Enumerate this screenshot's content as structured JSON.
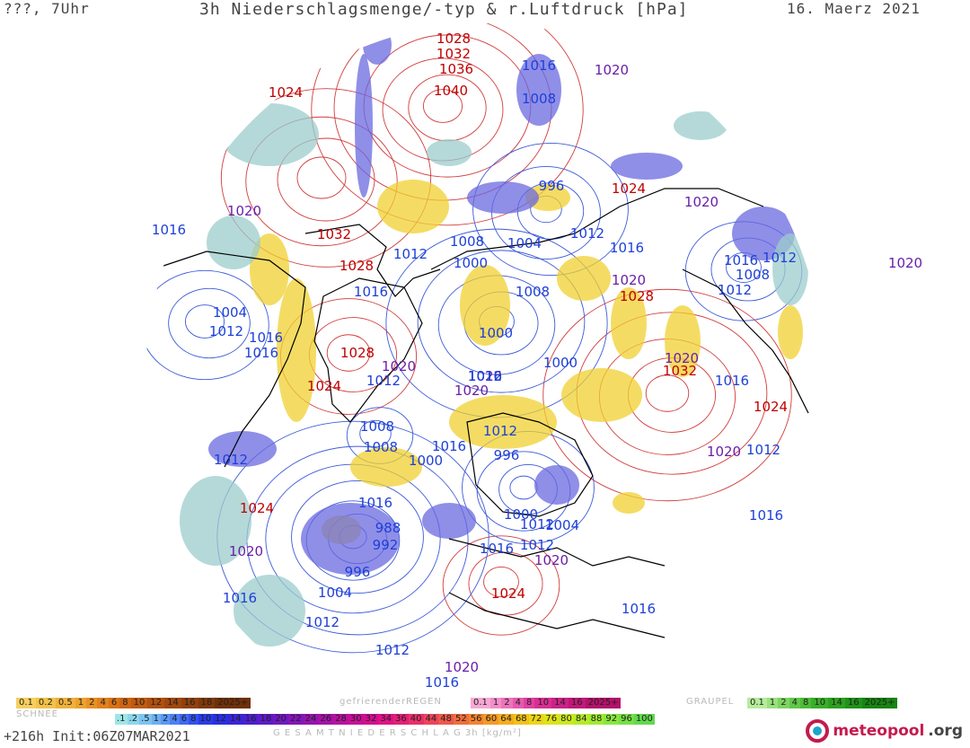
{
  "header": {
    "left": "???, 7Uhr",
    "title": "3h Niederschlagsmenge/-typ & r.Luftdruck [hPa]",
    "date": "16. Maerz 2021"
  },
  "footer": {
    "run": "+216h  Init:06Z07MAR2021",
    "total_label": "G E S A M T N I E D E R S C H L A G   3h   [kg/m²]",
    "logo_text": "meteopool",
    "logo_tld": ".org"
  },
  "legends": {
    "snow": {
      "title": "SCHNEE",
      "values": [
        "0.1",
        "0.2",
        "0.5",
        "1",
        "2",
        "4",
        "6",
        "8",
        "10",
        "12",
        "14",
        "16",
        "18",
        "2025+"
      ],
      "colors": [
        "#f5d060",
        "#f3c24a",
        "#efb23a",
        "#eca22e",
        "#e79225",
        "#e0811c",
        "#d87216",
        "#cc6512",
        "#bf5a10",
        "#b0500e",
        "#a0470c",
        "#90400a",
        "#7f3808",
        "#6f3006"
      ]
    },
    "freezing_rain": {
      "title": "gefrierenderREGEN",
      "values": [
        "0.1",
        "1",
        "2",
        "4",
        "8",
        "10",
        "14",
        "16",
        "2025+"
      ],
      "colors": [
        "#f7a8d4",
        "#f28ec8",
        "#ec74bb",
        "#e65aae",
        "#e040a0",
        "#d82e93",
        "#cc2286",
        "#c01879",
        "#b4106c"
      ]
    },
    "graupel": {
      "title": "GRAUPEL",
      "values": [
        "0.1",
        "1",
        "2",
        "4",
        "8",
        "10",
        "14",
        "16",
        "2025+"
      ],
      "colors": [
        "#b6ec9c",
        "#9ae07e",
        "#7ed462",
        "#62c84a",
        "#4cbc38",
        "#3aae2a",
        "#2ca020",
        "#209218",
        "#168412"
      ]
    },
    "total": {
      "values": [
        ".1",
        ".2",
        ".5",
        "1",
        "2",
        "4",
        "6",
        "8",
        "10",
        "12",
        "14",
        "16",
        "18",
        "20",
        "22",
        "24",
        "26",
        "28",
        "30",
        "32",
        "34",
        "36",
        "40",
        "44",
        "48",
        "52",
        "56",
        "60",
        "64",
        "68",
        "72",
        "76",
        "80",
        "84",
        "88",
        "92",
        "96",
        "100"
      ],
      "colors": [
        "#9ee6e6",
        "#8cd6ec",
        "#7cc4f0",
        "#6cb0f2",
        "#5c98f4",
        "#4c80f4",
        "#3e68f2",
        "#3250ee",
        "#283ce8",
        "#2a2ee0",
        "#3a24d8",
        "#4c1ed0",
        "#5e1ac8",
        "#7018c0",
        "#8216b8",
        "#9414b0",
        "#a612a8",
        "#b810a0",
        "#c80e98",
        "#d40e8e",
        "#de1484",
        "#e41e78",
        "#e8306a",
        "#ec445a",
        "#ee584a",
        "#f06e3c",
        "#f28430",
        "#f49a26",
        "#f4ae1e",
        "#f2c21a",
        "#ecd418",
        "#e0e21a",
        "#cce820",
        "#b6ea28",
        "#a0ea32",
        "#8ae63c",
        "#76e046",
        "#62d850"
      ]
    }
  },
  "map": {
    "colors": {
      "high_label": "#c00000",
      "low_label": "#1e40d8",
      "mid_label": "#6a1fa8",
      "high_isobar": "#d23c3c",
      "low_isobar": "#3c5ad8",
      "coast": "#000000",
      "snow": "#f0d030",
      "rain": "#6a6ae0",
      "drizzle": "#9ccccc"
    },
    "pressure_labels": [
      {
        "text": "1028",
        "kind": "high"
      },
      {
        "text": "1032",
        "kind": "high"
      },
      {
        "text": "1036",
        "kind": "high"
      },
      {
        "text": "1040",
        "kind": "high"
      },
      {
        "text": "1024",
        "kind": "high"
      },
      {
        "text": "1016",
        "kind": "low"
      },
      {
        "text": "1020",
        "kind": "mid"
      },
      {
        "text": "1008",
        "kind": "low"
      },
      {
        "text": "1020",
        "kind": "mid"
      },
      {
        "text": "996",
        "kind": "low"
      },
      {
        "text": "1024",
        "kind": "high"
      },
      {
        "text": "1016",
        "kind": "low"
      },
      {
        "text": "1020",
        "kind": "mid"
      },
      {
        "text": "1016",
        "kind": "low"
      },
      {
        "text": "1020",
        "kind": "mid"
      },
      {
        "text": "1032",
        "kind": "high"
      },
      {
        "text": "1008",
        "kind": "low"
      },
      {
        "text": "1004",
        "kind": "low"
      },
      {
        "text": "1012",
        "kind": "low"
      },
      {
        "text": "1016",
        "kind": "low"
      },
      {
        "text": "1008",
        "kind": "low"
      },
      {
        "text": "1012",
        "kind": "low"
      },
      {
        "text": "1028",
        "kind": "high"
      },
      {
        "text": "1012",
        "kind": "low"
      },
      {
        "text": "1000",
        "kind": "low"
      },
      {
        "text": "1020",
        "kind": "mid"
      },
      {
        "text": "1016",
        "kind": "low"
      },
      {
        "text": "1008",
        "kind": "low"
      },
      {
        "text": "1012",
        "kind": "low"
      },
      {
        "text": "1028",
        "kind": "high"
      },
      {
        "text": "1004",
        "kind": "low"
      },
      {
        "text": "1012",
        "kind": "low"
      },
      {
        "text": "1016",
        "kind": "low"
      },
      {
        "text": "1016",
        "kind": "low"
      },
      {
        "text": "1000",
        "kind": "low"
      },
      {
        "text": "1020",
        "kind": "mid"
      },
      {
        "text": "1012",
        "kind": "low"
      },
      {
        "text": "1028",
        "kind": "high"
      },
      {
        "text": "1024",
        "kind": "high"
      },
      {
        "text": "1000",
        "kind": "low"
      },
      {
        "text": "1020",
        "kind": "mid"
      },
      {
        "text": "1032",
        "kind": "high"
      },
      {
        "text": "1016",
        "kind": "low"
      },
      {
        "text": "1012",
        "kind": "low"
      },
      {
        "text": "1020",
        "kind": "mid"
      },
      {
        "text": "1008",
        "kind": "low"
      },
      {
        "text": "1016",
        "kind": "low"
      },
      {
        "text": "1024",
        "kind": "high"
      },
      {
        "text": "1008",
        "kind": "low"
      },
      {
        "text": "1016",
        "kind": "low"
      },
      {
        "text": "1012",
        "kind": "low"
      },
      {
        "text": "1000",
        "kind": "low"
      },
      {
        "text": "996",
        "kind": "low"
      },
      {
        "text": "1020",
        "kind": "mid"
      },
      {
        "text": "1012",
        "kind": "low"
      },
      {
        "text": "1012",
        "kind": "low"
      },
      {
        "text": "1024",
        "kind": "high"
      },
      {
        "text": "988",
        "kind": "low"
      },
      {
        "text": "992",
        "kind": "low"
      },
      {
        "text": "1000",
        "kind": "low"
      },
      {
        "text": "1004",
        "kind": "low"
      },
      {
        "text": "1016",
        "kind": "low"
      },
      {
        "text": "1012",
        "kind": "low"
      },
      {
        "text": "1016",
        "kind": "low"
      },
      {
        "text": "1020",
        "kind": "mid"
      },
      {
        "text": "996",
        "kind": "low"
      },
      {
        "text": "1004",
        "kind": "low"
      },
      {
        "text": "1020",
        "kind": "mid"
      },
      {
        "text": "1024",
        "kind": "high"
      },
      {
        "text": "1012",
        "kind": "low"
      },
      {
        "text": "1016",
        "kind": "low"
      },
      {
        "text": "1016",
        "kind": "low"
      },
      {
        "text": "1012",
        "kind": "low"
      },
      {
        "text": "1016",
        "kind": "low"
      },
      {
        "text": "1020",
        "kind": "mid"
      },
      {
        "text": "1012",
        "kind": "low"
      },
      {
        "text": "1016",
        "kind": "low"
      },
      {
        "text": "1020",
        "kind": "mid"
      },
      {
        "text": "1016",
        "kind": "low"
      }
    ]
  }
}
